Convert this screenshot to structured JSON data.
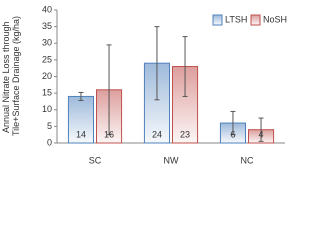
{
  "chart_data": {
    "type": "bar",
    "ylabel": [
      "Annual Nitrate Loss through",
      "Tile+Surface Drainage (kg/ha)"
    ],
    "categories": [
      "SC",
      "NW",
      "NC"
    ],
    "series": [
      {
        "name": "LTSH",
        "color": "#4f81bd",
        "values": [
          14,
          24,
          6
        ],
        "errors": [
          1.2,
          11,
          3.5
        ]
      },
      {
        "name": "NoSH",
        "color": "#c0504d",
        "values": [
          16,
          23,
          4
        ],
        "errors": [
          13.5,
          9,
          3.5
        ]
      }
    ],
    "ylim": [
      0,
      40
    ],
    "yticks": [
      0,
      5,
      10,
      15,
      20,
      25,
      30,
      35,
      40
    ],
    "grid": false,
    "legend": "top-right"
  }
}
